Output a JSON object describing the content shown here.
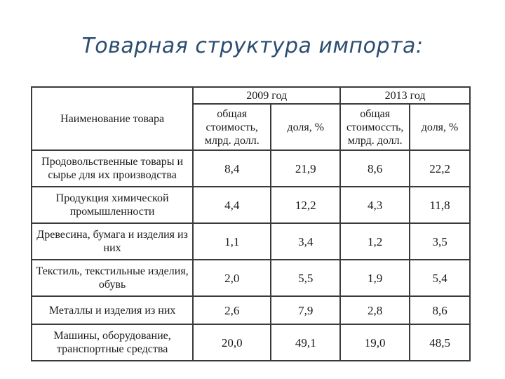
{
  "title": "Товарная структура импорта:",
  "table": {
    "name_header": "Наименование товара",
    "years": [
      "2009 год",
      "2013 год"
    ],
    "subheaders": {
      "value_2009": "общая стоимость, млрд. долл.",
      "share_2009": "доля, %",
      "value_2013": "общая стоимоссть, млрд. долл.",
      "share_2013": "доля, %"
    },
    "rows": [
      {
        "name": "Продовольственные товары и сырье для их производства",
        "v2009": "8,4",
        "s2009": "21,9",
        "v2013": "8,6",
        "s2013": "22,2"
      },
      {
        "name": "Продукция химической промышленности",
        "v2009": "4,4",
        "s2009": "12,2",
        "v2013": "4,3",
        "s2013": "11,8"
      },
      {
        "name": "Древесина, бумага и изделия из них",
        "v2009": "1,1",
        "s2009": "3,4",
        "v2013": "1,2",
        "s2013": "3,5"
      },
      {
        "name": "Текстиль, текстильные изделия, обувь",
        "v2009": "2,0",
        "s2009": "5,5",
        "v2013": "1,9",
        "s2013": "5,4"
      },
      {
        "name": "Металлы и изделия из них",
        "v2009": "2,6",
        "s2009": "7,9",
        "v2013": "2,8",
        "s2013": "8,6"
      },
      {
        "name": "Машины, оборудование, транспортные средства",
        "v2009": "20,0",
        "s2009": "49,1",
        "v2013": "19,0",
        "s2013": "48,5"
      }
    ]
  }
}
